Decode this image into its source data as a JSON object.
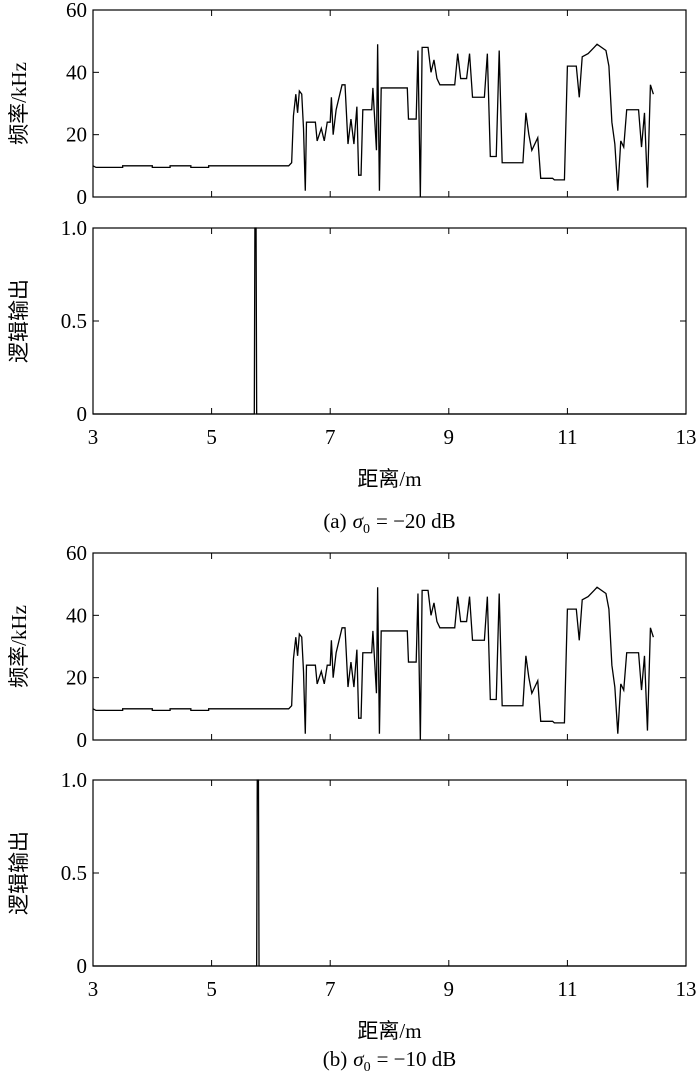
{
  "chart_data": [
    {
      "type": "line",
      "ylabel": "频率/kHz",
      "xlim": [
        3,
        13
      ],
      "ylim": [
        0,
        60
      ],
      "xticks": [
        3,
        5,
        7,
        9,
        11,
        13
      ],
      "yticks": [
        0,
        20,
        40,
        60
      ],
      "xtick_labels": false,
      "color": "#000000",
      "x": [
        3,
        3.05,
        3.5,
        3.5,
        4,
        4,
        4.3,
        4.3,
        4.65,
        4.65,
        4.95,
        4.95,
        6.3,
        6.35,
        6.38,
        6.42,
        6.45,
        6.48,
        6.52,
        6.55,
        6.58,
        6.6,
        6.75,
        6.78,
        6.85,
        6.9,
        6.95,
        7.0,
        7.02,
        7.05,
        7.1,
        7.2,
        7.25,
        7.3,
        7.35,
        7.4,
        7.45,
        7.48,
        7.52,
        7.55,
        7.7,
        7.72,
        7.75,
        7.78,
        7.8,
        7.83,
        7.86,
        8.3,
        8.32,
        8.45,
        8.48,
        8.52,
        8.55,
        8.65,
        8.7,
        8.75,
        8.8,
        8.85,
        9.1,
        9.15,
        9.2,
        9.3,
        9.35,
        9.4,
        9.6,
        9.65,
        9.7,
        9.8,
        9.85,
        9.9,
        10.25,
        10.3,
        10.35,
        10.4,
        10.5,
        10.55,
        10.75,
        10.78,
        10.95,
        11.0,
        11.15,
        11.2,
        11.25,
        11.35,
        11.45,
        11.5,
        11.65,
        11.7,
        11.75,
        11.8,
        11.85,
        11.9,
        11.95,
        12.0,
        12.2,
        12.25,
        12.3,
        12.35,
        12.4,
        12.45
      ],
      "values": [
        10,
        9.5,
        9.5,
        10,
        10,
        9.5,
        9.5,
        10,
        10,
        9.5,
        9.5,
        10,
        10,
        11,
        26,
        33,
        27,
        34,
        33,
        22,
        2,
        24,
        24,
        18,
        22,
        18,
        24,
        24,
        32,
        20,
        28,
        36,
        36,
        17,
        25,
        17,
        29,
        7,
        7,
        28,
        28,
        35,
        25,
        15,
        49,
        2,
        35,
        35,
        25,
        25,
        47,
        0,
        48,
        48,
        40,
        44,
        38,
        36,
        36,
        46,
        38,
        38,
        46,
        32,
        32,
        46,
        13,
        13,
        47,
        11,
        11,
        27,
        20,
        15,
        19,
        6,
        6,
        5.5,
        5.5,
        42,
        42,
        32,
        45,
        46,
        48,
        49,
        47,
        42,
        24,
        17,
        2,
        18,
        16,
        28,
        28,
        16,
        27,
        3,
        36,
        33
      ]
    },
    {
      "type": "line",
      "ylabel": "逻辑输出",
      "xlabel": "距离/m",
      "xlim": [
        3,
        13
      ],
      "ylim": [
        0,
        1
      ],
      "xticks": [
        3,
        5,
        7,
        9,
        11,
        13
      ],
      "yticks": [
        0,
        0.5,
        {
          "value": 1,
          "label": "1.0"
        }
      ],
      "xtick_labels": true,
      "color": "#000000",
      "x": [
        3,
        5.72,
        5.73,
        5.75,
        5.76,
        13
      ],
      "values": [
        0,
        0,
        1,
        1,
        0,
        0
      ]
    },
    {
      "type": "line",
      "ylabel": "频率/kHz",
      "xlim": [
        3,
        13
      ],
      "ylim": [
        0,
        60
      ],
      "xticks": [
        3,
        5,
        7,
        9,
        11,
        13
      ],
      "yticks": [
        0,
        20,
        40,
        60
      ],
      "xtick_labels": false,
      "color": "#000000",
      "x": [
        3,
        3.05,
        3.5,
        3.5,
        4,
        4,
        4.3,
        4.3,
        4.65,
        4.65,
        4.95,
        4.95,
        6.3,
        6.35,
        6.38,
        6.42,
        6.45,
        6.48,
        6.52,
        6.55,
        6.58,
        6.6,
        6.75,
        6.78,
        6.85,
        6.9,
        6.95,
        7.0,
        7.02,
        7.05,
        7.1,
        7.2,
        7.25,
        7.3,
        7.35,
        7.4,
        7.45,
        7.48,
        7.52,
        7.55,
        7.7,
        7.72,
        7.75,
        7.78,
        7.8,
        7.83,
        7.86,
        8.3,
        8.32,
        8.45,
        8.48,
        8.52,
        8.55,
        8.65,
        8.7,
        8.75,
        8.8,
        8.85,
        9.1,
        9.15,
        9.2,
        9.3,
        9.35,
        9.4,
        9.6,
        9.65,
        9.7,
        9.8,
        9.85,
        9.9,
        10.25,
        10.3,
        10.35,
        10.4,
        10.5,
        10.55,
        10.75,
        10.78,
        10.95,
        11.0,
        11.15,
        11.2,
        11.25,
        11.35,
        11.45,
        11.5,
        11.65,
        11.7,
        11.75,
        11.8,
        11.85,
        11.9,
        11.95,
        12.0,
        12.2,
        12.25,
        12.3,
        12.35,
        12.4,
        12.45
      ],
      "values": [
        10,
        9.5,
        9.5,
        10,
        10,
        9.5,
        9.5,
        10,
        10,
        9.5,
        9.5,
        10,
        10,
        11,
        26,
        33,
        27,
        34,
        33,
        22,
        2,
        24,
        24,
        18,
        22,
        18,
        24,
        24,
        32,
        20,
        28,
        36,
        36,
        17,
        25,
        17,
        29,
        7,
        7,
        28,
        28,
        35,
        25,
        15,
        49,
        2,
        35,
        35,
        25,
        25,
        47,
        0,
        48,
        48,
        40,
        44,
        38,
        36,
        36,
        46,
        38,
        38,
        46,
        32,
        32,
        46,
        13,
        13,
        47,
        11,
        11,
        27,
        20,
        15,
        19,
        6,
        6,
        5.5,
        5.5,
        42,
        42,
        32,
        45,
        46,
        48,
        49,
        47,
        42,
        24,
        17,
        2,
        18,
        16,
        28,
        28,
        16,
        27,
        3,
        36,
        33
      ]
    },
    {
      "type": "line",
      "ylabel": "逻辑输出",
      "xlabel": "距离/m",
      "xlim": [
        3,
        13
      ],
      "ylim": [
        0,
        1
      ],
      "xticks": [
        3,
        5,
        7,
        9,
        11,
        13
      ],
      "yticks": [
        0,
        0.5,
        {
          "value": 1,
          "label": "1.0"
        }
      ],
      "xtick_labels": true,
      "color": "#000000",
      "x": [
        3,
        5.76,
        5.77,
        5.79,
        5.8,
        13
      ],
      "values": [
        0,
        0,
        1,
        1,
        0,
        0
      ]
    }
  ],
  "captions": [
    {
      "label": "(a)",
      "symbol": "σ",
      "subscript": "0",
      "text": "= −20 dB"
    },
    {
      "label": "(b)",
      "symbol": "σ",
      "subscript": "0",
      "text": "= −10 dB"
    }
  ]
}
